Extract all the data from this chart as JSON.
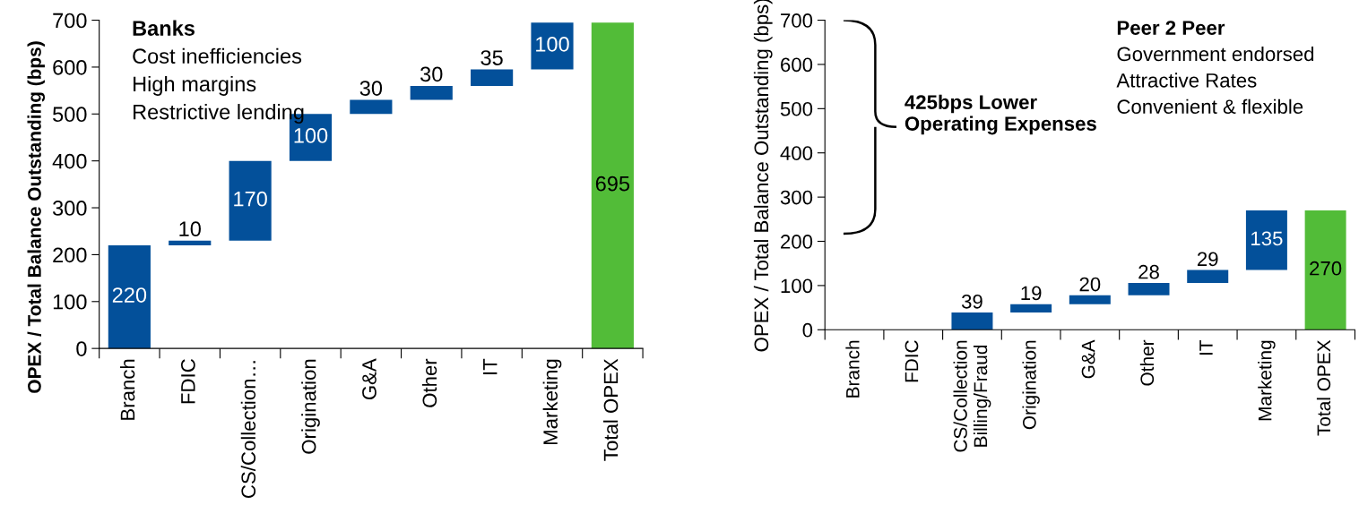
{
  "chart_data": [
    {
      "type": "bar",
      "ylabel": "OPEX / Total Balance Outstanding (bps)",
      "categories": [
        "Branch",
        "FDIC",
        "CS/Collection…",
        "Origination",
        "G&A",
        "Other",
        "IT",
        "Marketing",
        "Total OPEX"
      ],
      "values": [
        220,
        10,
        170,
        100,
        30,
        30,
        35,
        100,
        695
      ],
      "base": [
        0,
        220,
        230,
        400,
        500,
        530,
        560,
        595,
        0
      ],
      "colors": [
        "#03509a",
        "#03509a",
        "#03509a",
        "#03509a",
        "#03509a",
        "#03509a",
        "#03509a",
        "#03509a",
        "#52bc38"
      ],
      "ylim": [
        0,
        700
      ],
      "yticks": [
        0,
        100,
        200,
        300,
        400,
        500,
        600,
        700
      ],
      "data_labels": true,
      "grid": false,
      "legend": false,
      "annotations": [
        "Banks",
        "Cost inefficiencies",
        "High margins",
        "Restrictive lending"
      ]
    },
    {
      "type": "bar",
      "ylabel": "OPEX / Total Balance Outstanding (bps)",
      "categories": [
        "Branch",
        "FDIC",
        "CS/Collection\nBilling/Fraud",
        "Origination",
        "G&A",
        "Other",
        "IT",
        "Marketing",
        "Total OPEX"
      ],
      "values": [
        null,
        null,
        39,
        19,
        20,
        28,
        29,
        135,
        270
      ],
      "base": [
        null,
        null,
        0,
        39,
        58,
        78,
        106,
        135,
        0
      ],
      "colors": [
        "#03509a",
        "#03509a",
        "#03509a",
        "#03509a",
        "#03509a",
        "#03509a",
        "#03509a",
        "#03509a",
        "#52bc38"
      ],
      "ylim": [
        0,
        700
      ],
      "yticks": [
        0,
        100,
        200,
        300,
        400,
        500,
        600,
        700
      ],
      "data_labels": true,
      "grid": false,
      "legend": false,
      "annotations": [
        "Peer 2 Peer",
        "Government endorsed",
        "Attractive Rates",
        "Convenient & flexible",
        "425bps Lower\nOperating Expenses"
      ]
    }
  ]
}
